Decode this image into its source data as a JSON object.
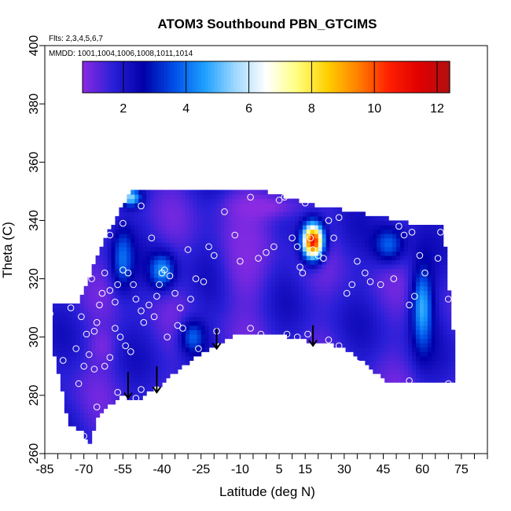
{
  "chart_data": {
    "type": "heatmap",
    "title": "ATOM3 Southbound PBN_GTCIMS",
    "subtitle_flights": "Flts: 2,3,4,5,6,7",
    "subtitle_mmdd": "MMDD: 1001,1004,1006,1008,1011,1014",
    "xlabel": "Latitude (deg N)",
    "ylabel": "Theta (C)",
    "xlim": [
      -85,
      85
    ],
    "ylim": [
      260,
      400
    ],
    "x_ticks": [
      "-85",
      "-70",
      "-55",
      "-40",
      "-25",
      "-10",
      "5",
      "15",
      "30",
      "45",
      "60",
      "75"
    ],
    "y_ticks": [
      "260",
      "280",
      "300",
      "320",
      "340",
      "360",
      "380",
      "400"
    ],
    "colorbar": {
      "range": [
        0.7,
        12.4
      ],
      "ticks": [
        "2",
        "4",
        "6",
        "8",
        "10",
        "12"
      ],
      "colors": [
        "#8a2be2",
        "#2a1fd8",
        "#0000a8",
        "#0050e8",
        "#1ea0ff",
        "#a0d8ff",
        "#ffffff",
        "#ffff80",
        "#ffd000",
        "#ff8000",
        "#ff2000",
        "#e00000",
        "#b01010"
      ]
    },
    "field_boundary": {
      "top": [
        [
          -72,
          312
        ],
        [
          -66,
          325
        ],
        [
          -60,
          337
        ],
        [
          -55,
          345
        ],
        [
          -52,
          350
        ],
        [
          -30,
          350
        ],
        [
          0,
          350
        ],
        [
          20,
          345
        ],
        [
          40,
          342
        ],
        [
          60,
          338
        ],
        [
          68,
          338
        ],
        [
          70,
          318
        ],
        [
          72,
          300
        ],
        [
          72,
          285
        ]
      ],
      "bottom": [
        [
          -81,
          293
        ],
        [
          -78,
          280
        ],
        [
          -76,
          270
        ],
        [
          -71,
          268
        ],
        [
          -68,
          263
        ],
        [
          -65,
          272
        ],
        [
          -60,
          277
        ],
        [
          -55,
          280
        ],
        [
          -50,
          278
        ],
        [
          -45,
          281
        ],
        [
          -40,
          284
        ],
        [
          -32,
          290
        ],
        [
          -20,
          297
        ],
        [
          -12,
          301
        ],
        [
          0,
          301
        ],
        [
          10,
          300
        ],
        [
          18,
          298
        ],
        [
          28,
          297
        ],
        [
          35,
          293
        ],
        [
          42,
          288
        ],
        [
          48,
          284
        ],
        [
          60,
          285
        ],
        [
          72,
          285
        ]
      ],
      "left": [
        [
          -81,
          293
        ],
        [
          -81,
          303
        ],
        [
          -78,
          310
        ],
        [
          -72,
          312
        ]
      ]
    },
    "hotspots": [
      {
        "lat": 18,
        "theta": 333,
        "value": 11.0,
        "sx": 4,
        "sy": 6
      },
      {
        "lat": -40,
        "theta": 323,
        "value": 4.5,
        "sx": 5,
        "sy": 6
      },
      {
        "lat": -55,
        "theta": 327,
        "value": 4.0,
        "sx": 4,
        "sy": 10
      },
      {
        "lat": 60,
        "theta": 310,
        "value": 4.8,
        "sx": 4,
        "sy": 14
      },
      {
        "lat": 47,
        "theta": 332,
        "value": 3.8,
        "sx": 6,
        "sy": 6
      },
      {
        "lat": -28,
        "theta": 300,
        "value": 3.8,
        "sx": 5,
        "sy": 6
      },
      {
        "lat": -8,
        "theta": 328,
        "value": 0.8,
        "sx": 8,
        "sy": 18
      },
      {
        "lat": -63,
        "theta": 297,
        "value": 0.9,
        "sx": 5,
        "sy": 7
      },
      {
        "lat": 0,
        "theta": 345,
        "value": 0.8,
        "sx": 16,
        "sy": 5
      },
      {
        "lat": -52,
        "theta": 348,
        "value": 5.5,
        "sx": 4,
        "sy": 3
      }
    ],
    "observation_points": [
      [
        -83,
        308
      ],
      [
        -78,
        292
      ],
      [
        -75,
        310
      ],
      [
        -71,
        307
      ],
      [
        -73,
        296
      ],
      [
        -69,
        301
      ],
      [
        -68,
        294
      ],
      [
        -66,
        302
      ],
      [
        -65,
        305
      ],
      [
        -64,
        311
      ],
      [
        -63,
        315
      ],
      [
        -67,
        320
      ],
      [
        -62,
        322
      ],
      [
        -60,
        316
      ],
      [
        -58,
        312
      ],
      [
        -57,
        318
      ],
      [
        -55,
        323
      ],
      [
        -53,
        322
      ],
      [
        -51,
        318
      ],
      [
        -50,
        313
      ],
      [
        -48,
        309
      ],
      [
        -47,
        305
      ],
      [
        -45,
        311
      ],
      [
        -43,
        307
      ],
      [
        -42,
        314
      ],
      [
        -41,
        318
      ],
      [
        -39,
        323
      ],
      [
        -37,
        321
      ],
      [
        -35,
        315
      ],
      [
        -33,
        310
      ],
      [
        -58,
        303
      ],
      [
        -56,
        300
      ],
      [
        -54,
        297
      ],
      [
        -52,
        295
      ],
      [
        -60,
        293
      ],
      [
        -62,
        290
      ],
      [
        -66,
        289
      ],
      [
        -70,
        290
      ],
      [
        -57,
        281
      ],
      [
        -48,
        282
      ],
      [
        -42,
        282
      ],
      [
        -50,
        279
      ],
      [
        -65,
        276
      ],
      [
        -70,
        266
      ],
      [
        -72,
        284
      ],
      [
        -60,
        335
      ],
      [
        -55,
        339
      ],
      [
        -48,
        345
      ],
      [
        -30,
        330
      ],
      [
        -27,
        320
      ],
      [
        -24,
        319
      ],
      [
        -22,
        331
      ],
      [
        -20,
        328
      ],
      [
        -16,
        343
      ],
      [
        -12,
        335
      ],
      [
        -10,
        326
      ],
      [
        -6,
        348
      ],
      [
        -3,
        327
      ],
      [
        0,
        329
      ],
      [
        3,
        331
      ],
      [
        5,
        347
      ],
      [
        7,
        348
      ],
      [
        10,
        334
      ],
      [
        12,
        331
      ],
      [
        13,
        324
      ],
      [
        14,
        322
      ],
      [
        15,
        346
      ],
      [
        17,
        334
      ],
      [
        18,
        330
      ],
      [
        20,
        328
      ],
      [
        22,
        327
      ],
      [
        24,
        340
      ],
      [
        26,
        334
      ],
      [
        28,
        341
      ],
      [
        31,
        315
      ],
      [
        33,
        318
      ],
      [
        35,
        326
      ],
      [
        38,
        322
      ],
      [
        40,
        319
      ],
      [
        44,
        318
      ],
      [
        49,
        320
      ],
      [
        51,
        338
      ],
      [
        53,
        335
      ],
      [
        56,
        336
      ],
      [
        59,
        328
      ],
      [
        61,
        322
      ],
      [
        57,
        314
      ],
      [
        55,
        311
      ],
      [
        66,
        327
      ],
      [
        67,
        336
      ],
      [
        70,
        313
      ],
      [
        -44,
        334
      ],
      [
        -40,
        322
      ],
      [
        -38,
        300
      ],
      [
        -34,
        304
      ],
      [
        -32,
        303
      ],
      [
        -29,
        313
      ],
      [
        -26,
        296
      ],
      [
        -19,
        302
      ],
      [
        -18,
        294
      ],
      [
        -6,
        303
      ],
      [
        -2,
        301
      ],
      [
        8,
        301
      ],
      [
        12,
        300
      ],
      [
        16,
        301
      ],
      [
        24,
        299
      ],
      [
        28,
        297
      ],
      [
        35,
        291
      ],
      [
        42,
        286
      ],
      [
        47,
        283
      ],
      [
        55,
        285
      ],
      [
        70,
        284
      ]
    ],
    "arrows": [
      {
        "lat": -53,
        "theta_top": 288,
        "theta_bottom": 279
      },
      {
        "lat": -42,
        "theta_top": 290,
        "theta_bottom": 281
      },
      {
        "lat": -19,
        "theta_top": 303,
        "theta_bottom": 296
      },
      {
        "lat": 18,
        "theta_top": 304,
        "theta_bottom": 297
      }
    ]
  }
}
